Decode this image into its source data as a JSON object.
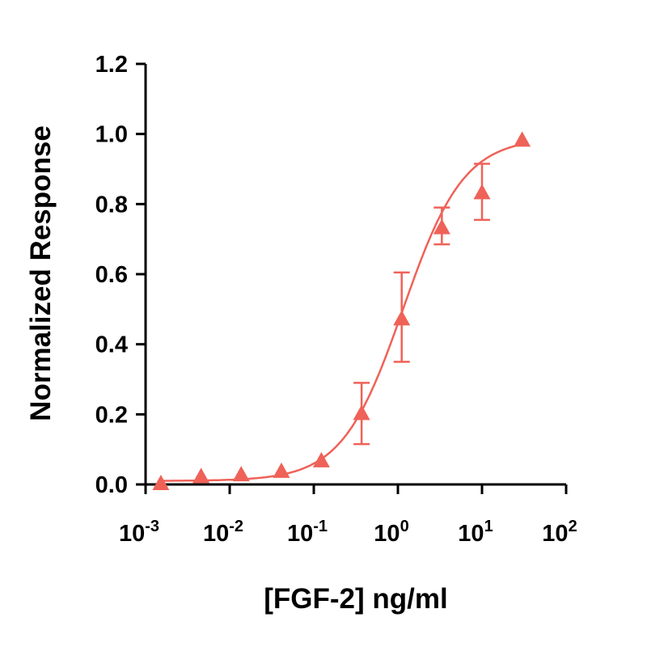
{
  "chart_data": {
    "type": "scatter",
    "title": "",
    "xlabel": "[FGF-2] ng/ml",
    "ylabel": "Normalized Response",
    "x_scale": "log",
    "xlim": [
      0.001,
      100
    ],
    "ylim": [
      0,
      1.2
    ],
    "x_ticks": [
      {
        "base": "10",
        "exp": "-3"
      },
      {
        "base": "10",
        "exp": "-2"
      },
      {
        "base": "10",
        "exp": "-1"
      },
      {
        "base": "10",
        "exp": "0"
      },
      {
        "base": "10",
        "exp": "1"
      },
      {
        "base": "10",
        "exp": "2"
      }
    ],
    "y_ticks": [
      "0.0",
      "0.2",
      "0.4",
      "0.6",
      "0.8",
      "1.0",
      "1.2"
    ],
    "grid": false,
    "legend": "none",
    "marker": "triangle",
    "color": "#EF6258",
    "series": [
      {
        "x": [
          0.00152,
          0.00457,
          0.0137,
          0.0412,
          0.123,
          0.37,
          1.11,
          3.33,
          10,
          30
        ],
        "y": [
          0.0,
          0.02,
          0.025,
          0.035,
          0.065,
          0.2,
          0.47,
          0.73,
          0.83,
          0.98
        ],
        "error_low": [
          null,
          null,
          null,
          null,
          null,
          0.115,
          0.35,
          0.685,
          0.755,
          null
        ],
        "error_high": [
          null,
          null,
          null,
          null,
          null,
          0.29,
          0.605,
          0.79,
          0.915,
          null
        ]
      }
    ],
    "fit": {
      "model": "4PL",
      "bottom": 0.01,
      "top": 0.99,
      "ec50": 1.15,
      "hill": 1.2
    }
  }
}
